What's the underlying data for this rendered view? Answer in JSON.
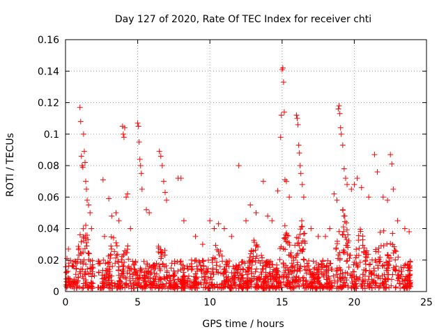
{
  "chart_data": {
    "type": "scatter",
    "title": "Day 127 of 2020, Rate Of TEC Index for receiver chti",
    "xlabel": "GPS time / hours",
    "ylabel": "ROTI / TECUs",
    "xlim": [
      0,
      25
    ],
    "ylim": [
      0,
      0.16
    ],
    "xticks": [
      0,
      5,
      10,
      15,
      20,
      25
    ],
    "xtick_labels": [
      "0",
      "5",
      "10",
      "15",
      "20",
      "25"
    ],
    "yticks": [
      0,
      0.02,
      0.04,
      0.06,
      0.08,
      0.1,
      0.12,
      0.14,
      0.16
    ],
    "ytick_labels": [
      "0",
      "0.02",
      "0.04",
      "0.06",
      "0.08",
      "0.1",
      "0.12",
      "0.14",
      "0.16"
    ],
    "grid": true,
    "marker": "plus",
    "color": "#ff0000",
    "series": [
      {
        "name": "ROTI",
        "points": [
          [
            0.05,
            0.012
          ],
          [
            0.1,
            0.021
          ],
          [
            0.2,
            0.027
          ],
          [
            0.3,
            0.008
          ],
          [
            0.5,
            0.006
          ],
          [
            0.8,
            0.018
          ],
          [
            1.0,
            0.117
          ],
          [
            1.05,
            0.108
          ],
          [
            1.1,
            0.086
          ],
          [
            1.15,
            0.08
          ],
          [
            1.2,
            0.079
          ],
          [
            1.25,
            0.1
          ],
          [
            1.3,
            0.089
          ],
          [
            1.35,
            0.082
          ],
          [
            1.4,
            0.07
          ],
          [
            1.45,
            0.065
          ],
          [
            1.5,
            0.058
          ],
          [
            1.6,
            0.055
          ],
          [
            1.7,
            0.05
          ],
          [
            1.8,
            0.04
          ],
          [
            1.9,
            0.015
          ],
          [
            2.0,
            0.01
          ],
          [
            2.3,
            0.012
          ],
          [
            2.6,
            0.071
          ],
          [
            2.7,
            0.035
          ],
          [
            3.0,
            0.059
          ],
          [
            3.2,
            0.048
          ],
          [
            3.5,
            0.05
          ],
          [
            3.7,
            0.045
          ],
          [
            3.95,
            0.105
          ],
          [
            4.0,
            0.1
          ],
          [
            4.05,
            0.098
          ],
          [
            4.1,
            0.104
          ],
          [
            4.2,
            0.06
          ],
          [
            4.3,
            0.062
          ],
          [
            4.5,
            0.04
          ],
          [
            5.0,
            0.107
          ],
          [
            5.05,
            0.105
          ],
          [
            5.1,
            0.095
          ],
          [
            5.15,
            0.084
          ],
          [
            5.2,
            0.08
          ],
          [
            5.25,
            0.075
          ],
          [
            5.3,
            0.065
          ],
          [
            5.6,
            0.052
          ],
          [
            5.8,
            0.05
          ],
          [
            6.5,
            0.089
          ],
          [
            6.6,
            0.086
          ],
          [
            6.7,
            0.08
          ],
          [
            6.8,
            0.07
          ],
          [
            6.9,
            0.063
          ],
          [
            7.0,
            0.058
          ],
          [
            7.8,
            0.072
          ],
          [
            8.0,
            0.072
          ],
          [
            8.2,
            0.045
          ],
          [
            9.0,
            0.035
          ],
          [
            9.5,
            0.03
          ],
          [
            10.0,
            0.045
          ],
          [
            10.3,
            0.04
          ],
          [
            10.6,
            0.043
          ],
          [
            11.0,
            0.04
          ],
          [
            11.5,
            0.035
          ],
          [
            12.0,
            0.08
          ],
          [
            12.5,
            0.045
          ],
          [
            12.8,
            0.055
          ],
          [
            13.2,
            0.05
          ],
          [
            13.7,
            0.07
          ],
          [
            14.0,
            0.048
          ],
          [
            14.3,
            0.045
          ],
          [
            14.7,
            0.064
          ],
          [
            14.9,
            0.098
          ],
          [
            14.95,
            0.112
          ],
          [
            15.0,
            0.141
          ],
          [
            15.05,
            0.142
          ],
          [
            15.1,
            0.133
          ],
          [
            15.15,
            0.114
          ],
          [
            15.2,
            0.071
          ],
          [
            15.3,
            0.07
          ],
          [
            15.5,
            0.06
          ],
          [
            16.0,
            0.112
          ],
          [
            16.05,
            0.11
          ],
          [
            16.1,
            0.106
          ],
          [
            16.15,
            0.093
          ],
          [
            16.2,
            0.088
          ],
          [
            16.25,
            0.08
          ],
          [
            16.3,
            0.075
          ],
          [
            16.4,
            0.068
          ],
          [
            16.5,
            0.06
          ],
          [
            17.0,
            0.04
          ],
          [
            17.5,
            0.035
          ],
          [
            18.0,
            0.035
          ],
          [
            18.3,
            0.04
          ],
          [
            18.6,
            0.062
          ],
          [
            18.8,
            0.058
          ],
          [
            18.9,
            0.116
          ],
          [
            18.95,
            0.118
          ],
          [
            19.0,
            0.113
          ],
          [
            19.05,
            0.104
          ],
          [
            19.1,
            0.1
          ],
          [
            19.2,
            0.093
          ],
          [
            19.3,
            0.078
          ],
          [
            19.4,
            0.072
          ],
          [
            19.5,
            0.068
          ],
          [
            19.8,
            0.065
          ],
          [
            20.0,
            0.068
          ],
          [
            20.2,
            0.072
          ],
          [
            20.5,
            0.066
          ],
          [
            21.0,
            0.06
          ],
          [
            21.4,
            0.087
          ],
          [
            21.6,
            0.076
          ],
          [
            22.0,
            0.06
          ],
          [
            22.3,
            0.058
          ],
          [
            22.5,
            0.087
          ],
          [
            22.6,
            0.081
          ],
          [
            22.7,
            0.065
          ],
          [
            23.0,
            0.045
          ],
          [
            23.5,
            0.04
          ],
          [
            23.8,
            0.038
          ]
        ]
      }
    ]
  }
}
